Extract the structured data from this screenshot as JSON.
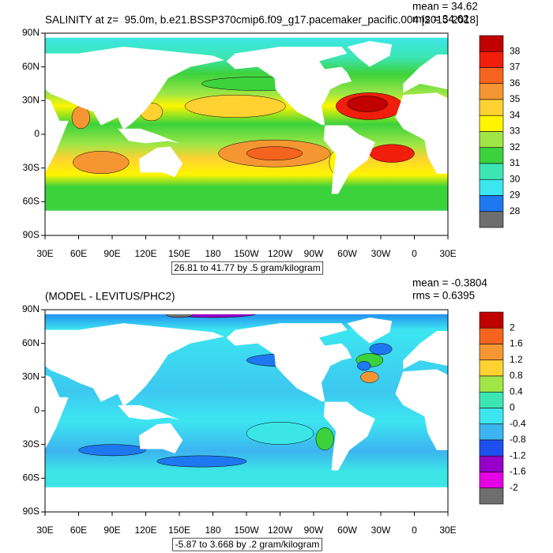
{
  "panels": [
    {
      "title": "SALINITY at z=  95.0m, b.e21.BSSP370cmip6.f09_g17.pacemaker_pacific.004 [2015-2018]",
      "stats": [
        "mean = 34.62",
        "rms = 34.62"
      ],
      "lat_labels": [
        "90N",
        "60N",
        "30N",
        "0",
        "30S",
        "60S",
        "90S"
      ],
      "lon_labels": [
        "30E",
        "60E",
        "90E",
        "120E",
        "150E",
        "180",
        "150W",
        "120W",
        "90W",
        "60W",
        "30W",
        "0",
        "30E"
      ],
      "colorbar_labels": [
        "38",
        "37",
        "36",
        "35",
        "34",
        "33",
        "32",
        "31",
        "30",
        "29",
        "28"
      ],
      "info": "26.81 to 41.77 by .5 gram/kilogram"
    },
    {
      "title": "(MODEL - LEVITUS/PHC2)",
      "stats": [
        "mean = -0.3804",
        "rms = 0.6395"
      ],
      "lat_labels": [
        "90N",
        "60N",
        "30N",
        "0",
        "30S",
        "60S",
        "90S"
      ],
      "lon_labels": [
        "30E",
        "60E",
        "90E",
        "120E",
        "150E",
        "180",
        "150W",
        "120W",
        "90W",
        "60W",
        "30W",
        "0",
        "30E"
      ],
      "colorbar_labels": [
        "2",
        "1.6",
        "1.2",
        "0.8",
        "0.4",
        "0",
        "-0.4",
        "-0.8",
        "-1.2",
        "-1.6",
        "-2"
      ],
      "info": "-5.87 to 3.668 by .2 gram/kilogram"
    }
  ]
}
